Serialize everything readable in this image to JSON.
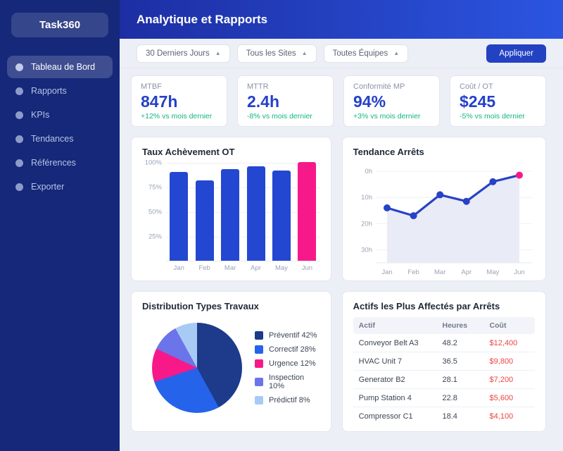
{
  "sidebar": {
    "logo": "Task360",
    "items": [
      {
        "label": "Tableau de Bord",
        "active": true
      },
      {
        "label": "Rapports",
        "active": false
      },
      {
        "label": "KPIs",
        "active": false
      },
      {
        "label": "Tendances",
        "active": false
      },
      {
        "label": "Références",
        "active": false
      },
      {
        "label": "Exporter",
        "active": false
      }
    ]
  },
  "header": {
    "title": "Analytique et Rapports"
  },
  "filters": {
    "dropdowns": [
      "30 Derniers Jours",
      "Tous les Sites",
      "Toutes Équipes"
    ],
    "dropdown_arrow": "▲",
    "apply_label": "Appliquer"
  },
  "kpis": [
    {
      "label": "MTBF",
      "value": "847h",
      "change": "+12% vs mois dernier"
    },
    {
      "label": "MTTR",
      "value": "2.4h",
      "change": "-8% vs mois dernier"
    },
    {
      "label": "Conformité MP",
      "value": "94%",
      "change": "+3% vs mois dernier"
    },
    {
      "label": "Coût / OT",
      "value": "$245",
      "change": "-5% vs mois dernier"
    }
  ],
  "chart_data": [
    {
      "type": "bar",
      "title": "Taux Achèvement OT",
      "categories": [
        "Jan",
        "Feb",
        "Mar",
        "Apr",
        "May",
        "Jun"
      ],
      "values": [
        90,
        82,
        93,
        96,
        92,
        100
      ],
      "unit": "%",
      "ylim": [
        0,
        100
      ],
      "yticks": [
        100,
        75,
        50,
        25
      ],
      "ytick_labels": [
        "100%",
        "75%",
        "50%",
        "25%"
      ],
      "bar_color": "#2447d2",
      "highlight_index": 5,
      "highlight_color": "#f7198a",
      "grid": true,
      "legend": "none"
    },
    {
      "type": "line",
      "title": "Tendance Arrêts",
      "categories": [
        "Jan",
        "Feb",
        "Mar",
        "Apr",
        "May",
        "Jun"
      ],
      "values": [
        14,
        17,
        9,
        11.5,
        4,
        1.5
      ],
      "unit": "h",
      "y_axis_inverted": true,
      "ylim": [
        0,
        35
      ],
      "yticks": [
        0,
        10,
        20,
        30
      ],
      "ytick_labels": [
        "0h",
        "10h",
        "20h",
        "30h"
      ],
      "line_color": "#2742c6",
      "point_color": "#2742c6",
      "last_point_color": "#f7198a",
      "area_fill": "#e9ebf6",
      "grid": true,
      "legend": "none"
    },
    {
      "type": "pie",
      "title": "Distribution Types Travaux",
      "slices": [
        {
          "label": "Préventif",
          "value": 42,
          "color": "#1e3a8a"
        },
        {
          "label": "Correctif",
          "value": 28,
          "color": "#2563eb"
        },
        {
          "label": "Urgence",
          "value": 12,
          "color": "#f7198a"
        },
        {
          "label": "Inspection",
          "value": 10,
          "color": "#6b74e8"
        },
        {
          "label": "Prédictif",
          "value": 8,
          "color": "#a8cbf5"
        }
      ],
      "legend_position": "right"
    },
    {
      "type": "table",
      "title": "Actifs les Plus Affectés par Arrêts",
      "columns": [
        "Actif",
        "Heures",
        "Coût"
      ],
      "rows": [
        {
          "actif": "Conveyor Belt A3",
          "heures": "48.2",
          "cout": "$12,400"
        },
        {
          "actif": "HVAC Unit 7",
          "heures": "36.5",
          "cout": "$9,800"
        },
        {
          "actif": "Generator B2",
          "heures": "28.1",
          "cout": "$7,200"
        },
        {
          "actif": "Pump Station 4",
          "heures": "22.8",
          "cout": "$5,600"
        },
        {
          "actif": "Compressor C1",
          "heures": "18.4",
          "cout": "$4,100"
        }
      ],
      "cost_color": "#ef4444"
    }
  ],
  "colors": {
    "sidebar_bg": "#152879",
    "header_gradient_start": "#1d2ea3",
    "header_gradient_end": "#2b55e0",
    "accent_blue": "#2441c8",
    "positive_green": "#12b585",
    "pink": "#f7198a",
    "content_bg": "#edeff7"
  }
}
